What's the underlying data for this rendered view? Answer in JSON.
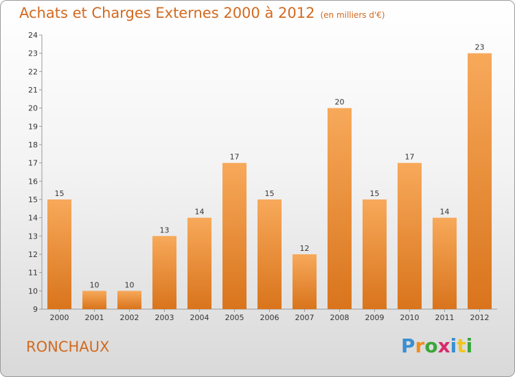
{
  "title": "Achats et Charges Externes 2000 à 2012",
  "unit": "(en milliers d'€)",
  "place": "RONCHAUX",
  "logo": {
    "text": "Proxiti",
    "letter_colors": [
      "#3a8fd1",
      "#f28c1e",
      "#3aa63a",
      "#d92a6a",
      "#3a8fd1",
      "#f2c51e",
      "#3aa63a"
    ]
  },
  "colors": {
    "accent": "#d2691e",
    "bar_light": "#f7a95a",
    "bar_dark": "#d9741c"
  },
  "chart_data": {
    "type": "bar",
    "title": "Achats et Charges Externes 2000 à 2012",
    "subtitle": "(en milliers d'€)",
    "categories": [
      "2000",
      "2001",
      "2002",
      "2003",
      "2004",
      "2005",
      "2006",
      "2007",
      "2008",
      "2009",
      "2010",
      "2011",
      "2012"
    ],
    "values": [
      15,
      10,
      10,
      13,
      14,
      17,
      15,
      12,
      20,
      15,
      17,
      14,
      23
    ],
    "yticks": [
      9,
      10,
      11,
      12,
      13,
      14,
      15,
      16,
      17,
      18,
      19,
      20,
      21,
      22,
      23,
      24
    ],
    "ylim": [
      9,
      24
    ],
    "grid": false,
    "data_labels": true
  }
}
